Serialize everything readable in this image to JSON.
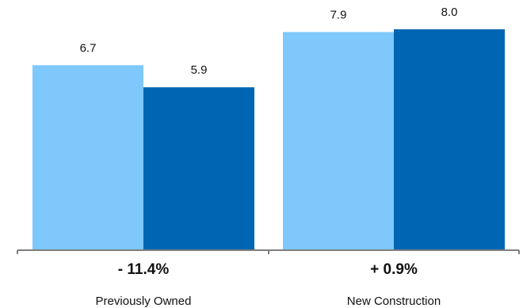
{
  "chart_data": {
    "type": "bar",
    "categories": [
      "Previously Owned",
      "New Construction"
    ],
    "series": [
      {
        "values": [
          6.7,
          7.9
        ],
        "color": "#7ec8fb"
      },
      {
        "values": [
          5.9,
          8.0
        ],
        "color": "#0066b3"
      }
    ],
    "value_labels": [
      [
        "6.7",
        "7.9"
      ],
      [
        "5.9",
        "8.0"
      ]
    ],
    "changes": [
      "- 11.4%",
      "+ 0.9%"
    ],
    "ylim": [
      0,
      8.0
    ],
    "grid": false,
    "legend": "none",
    "axis_color": "#7f7f7f"
  }
}
